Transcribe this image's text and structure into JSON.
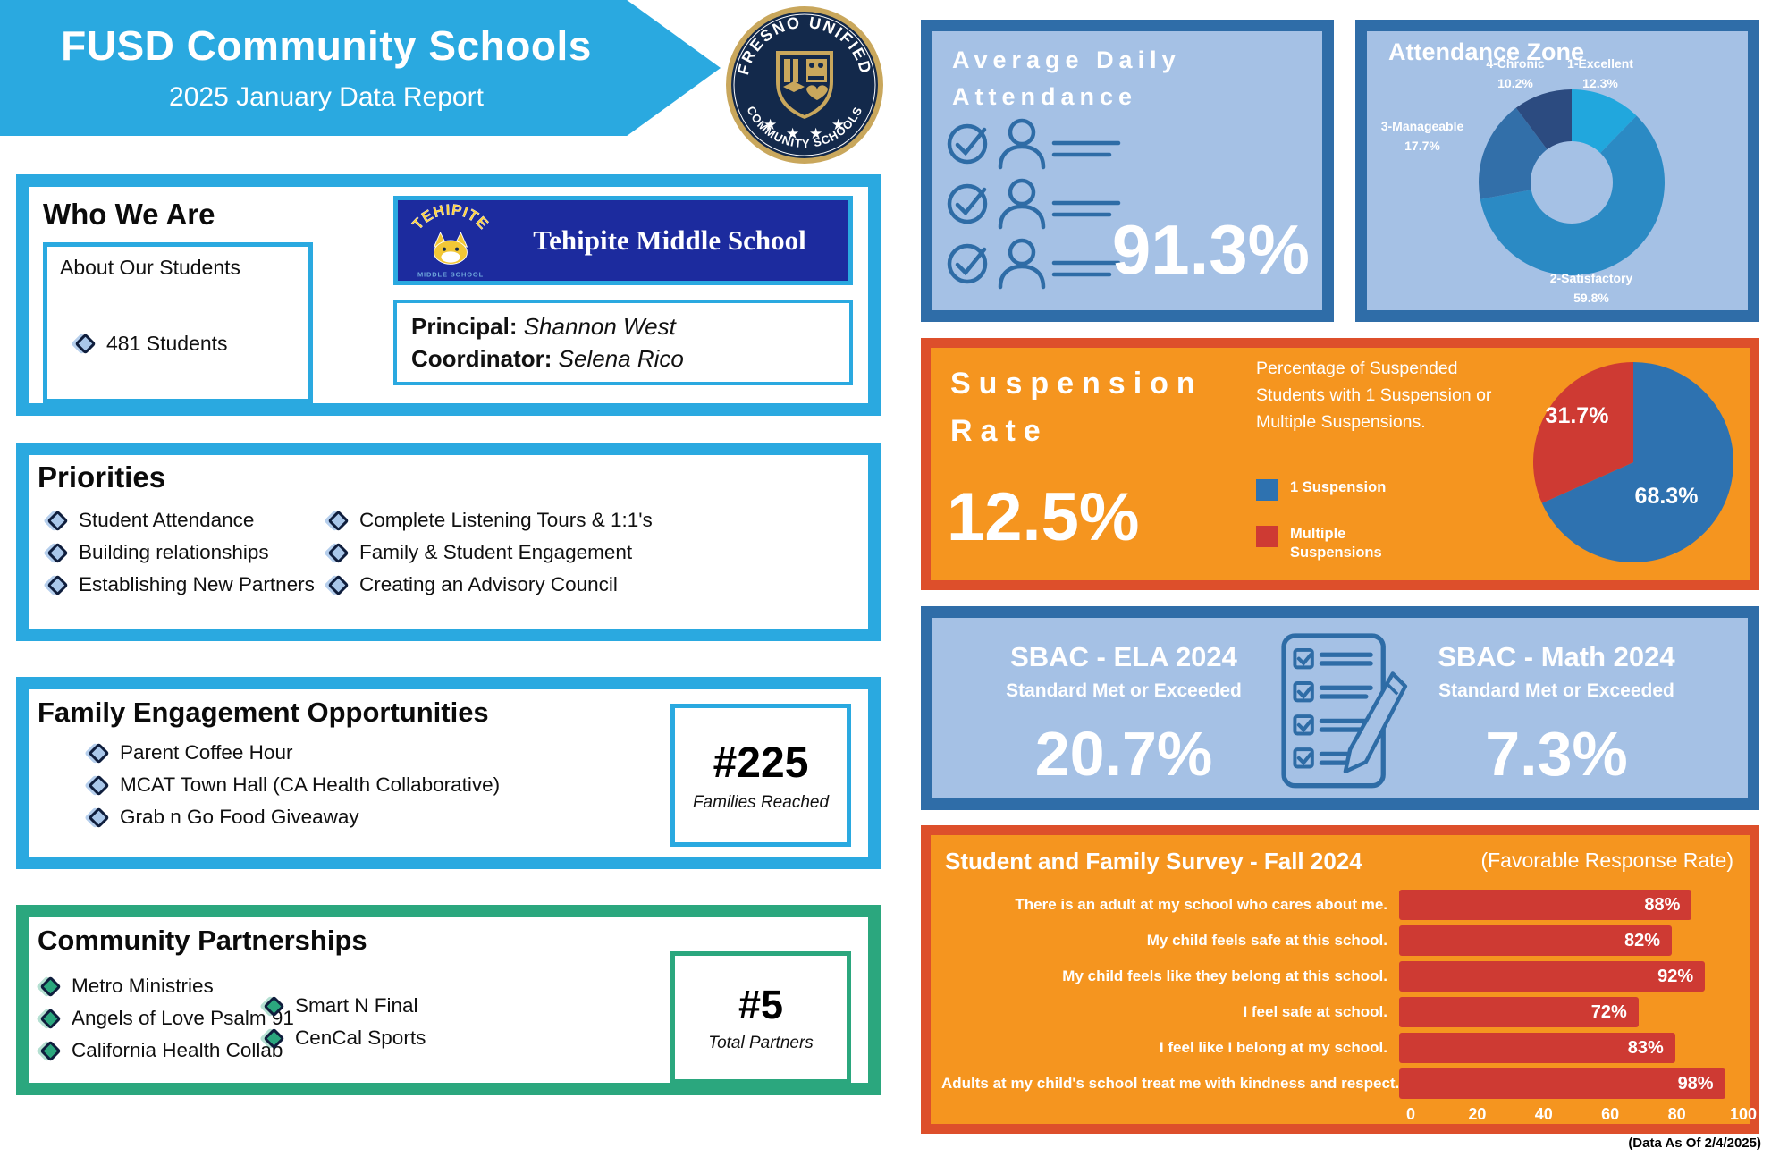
{
  "header": {
    "title": "FUSD Community Schools",
    "subtitle": "2025 January Data Report"
  },
  "logo": {
    "top": "FRESNO UNIFIED",
    "bottom": "COMMUNITY SCHOOLS"
  },
  "who": {
    "title": "Who We Are",
    "about_title": "About Our Students",
    "students": "481 Students",
    "school": {
      "banner_name": "Tehipite Middle School",
      "logo_name": "TEHIPITE",
      "logo_sub": "MIDDLE SCHOOL"
    },
    "principal_label": "Principal:",
    "principal": "Shannon West",
    "coordinator_label": "Coordinator:",
    "coordinator": "Selena Rico"
  },
  "priorities": {
    "title": "Priorities",
    "left": [
      "Student Attendance",
      "Building relationships",
      "Establishing New Partners"
    ],
    "right": [
      "Complete Listening Tours & 1:1's",
      "Family & Student Engagement",
      "Creating an Advisory Council"
    ]
  },
  "family": {
    "title": "Family Engagement Opportunities",
    "items": [
      "Parent Coffee Hour",
      "MCAT Town Hall (CA Health Collaborative)",
      "Grab n Go Food Giveaway"
    ],
    "count": "#225",
    "count_label": "Families Reached"
  },
  "community": {
    "title": "Community Partnerships",
    "left": [
      "Metro Ministries",
      "Angels of Love Psalm 91",
      "California Health Collab"
    ],
    "right": [
      "Smart N Final",
      "CenCal Sports"
    ],
    "count": "#5",
    "count_label": "Total Partners"
  },
  "attendance": {
    "title1": "Average Daily",
    "title2": "Attendance",
    "value": "91.3%"
  },
  "zone": {
    "title": "Attendance Zone",
    "labels": [
      {
        "name": "1-Excellent",
        "pct": "12.3%"
      },
      {
        "name": "2-Satisfactory",
        "pct": "59.8%"
      },
      {
        "name": "3-Manageable",
        "pct": "17.7%"
      },
      {
        "name": "4-Chronic",
        "pct": "10.2%"
      }
    ]
  },
  "suspension": {
    "title1": "Suspension",
    "title2": "Rate",
    "value": "12.5%",
    "desc": "Percentage of Suspended Students with 1 Suspension or Multiple Suspensions.",
    "legend": [
      {
        "label": "1 Suspension"
      },
      {
        "label": "Multiple Suspensions"
      }
    ],
    "pie_label_blue": "68.3%",
    "pie_label_red": "31.7%"
  },
  "sbac": {
    "ela": {
      "title": "SBAC - ELA 2024",
      "sub": "Standard Met or Exceeded",
      "value": "20.7%"
    },
    "math": {
      "title": "SBAC - Math 2024",
      "sub": "Standard Met or Exceeded",
      "value": "7.3%"
    }
  },
  "survey": {
    "title": "Student and Family Survey - Fall 2024",
    "subtitle": "(Favorable Response Rate)"
  },
  "footer": {
    "data_as_of": "(Data As Of 2/4/2025)"
  },
  "colors": {
    "accent_cyan": "#2AA9E0",
    "panel_blue_fill": "#A5C1E5",
    "panel_blue_border": "#2F6DA8",
    "orange_fill": "#F5951F",
    "orange_border": "#DD4F2B",
    "red": "#CE3A33",
    "green": "#2BA77E",
    "banner_navy": "#1C2B9E",
    "seal_navy": "#13294B",
    "seal_gold": "#C9A75C"
  },
  "chart_data": [
    {
      "id": "attendance-zone-donut",
      "type": "donut",
      "title": "Attendance Zone",
      "start_angle": "top",
      "direction": "clockwise",
      "hole_color": "#A5C1E5",
      "slices": [
        {
          "label": "1-Excellent",
          "value": 12.3,
          "color": "#21A7DD"
        },
        {
          "label": "2-Satisfactory",
          "value": 59.8,
          "color": "#2B8AC4"
        },
        {
          "label": "3-Manageable",
          "value": 17.7,
          "color": "#326FA9"
        },
        {
          "label": "4-Chronic",
          "value": 10.2,
          "color": "#2C4B80"
        }
      ]
    },
    {
      "id": "suspension-pie",
      "type": "pie",
      "start_angle": "top",
      "direction": "clockwise",
      "slices": [
        {
          "label": "1 Suspension",
          "value": 68.3,
          "color": "#2E72B0"
        },
        {
          "label": "Multiple Suspensions",
          "value": 31.7,
          "color": "#CE3A33"
        }
      ]
    },
    {
      "id": "survey-bars",
      "type": "bar",
      "orientation": "horizontal",
      "title": "Student and Family Survey - Fall 2024",
      "subtitle": "(Favorable Response Rate)",
      "categories": [
        "There is an adult at my school who cares about me.",
        "My child feels safe at this school.",
        "My child feels like they belong at this school.",
        "I feel safe at school.",
        "I feel like I belong at my school.",
        "Adults at my child's school treat me with kindness and respect."
      ],
      "values": [
        88,
        82,
        92,
        72,
        83,
        98
      ],
      "value_labels": [
        "88%",
        "82%",
        "92%",
        "72%",
        "83%",
        "98%"
      ],
      "xlim": [
        0,
        100
      ],
      "ticks": [
        0,
        20,
        40,
        60,
        80,
        100
      ],
      "bar_color": "#CE3A33"
    }
  ]
}
